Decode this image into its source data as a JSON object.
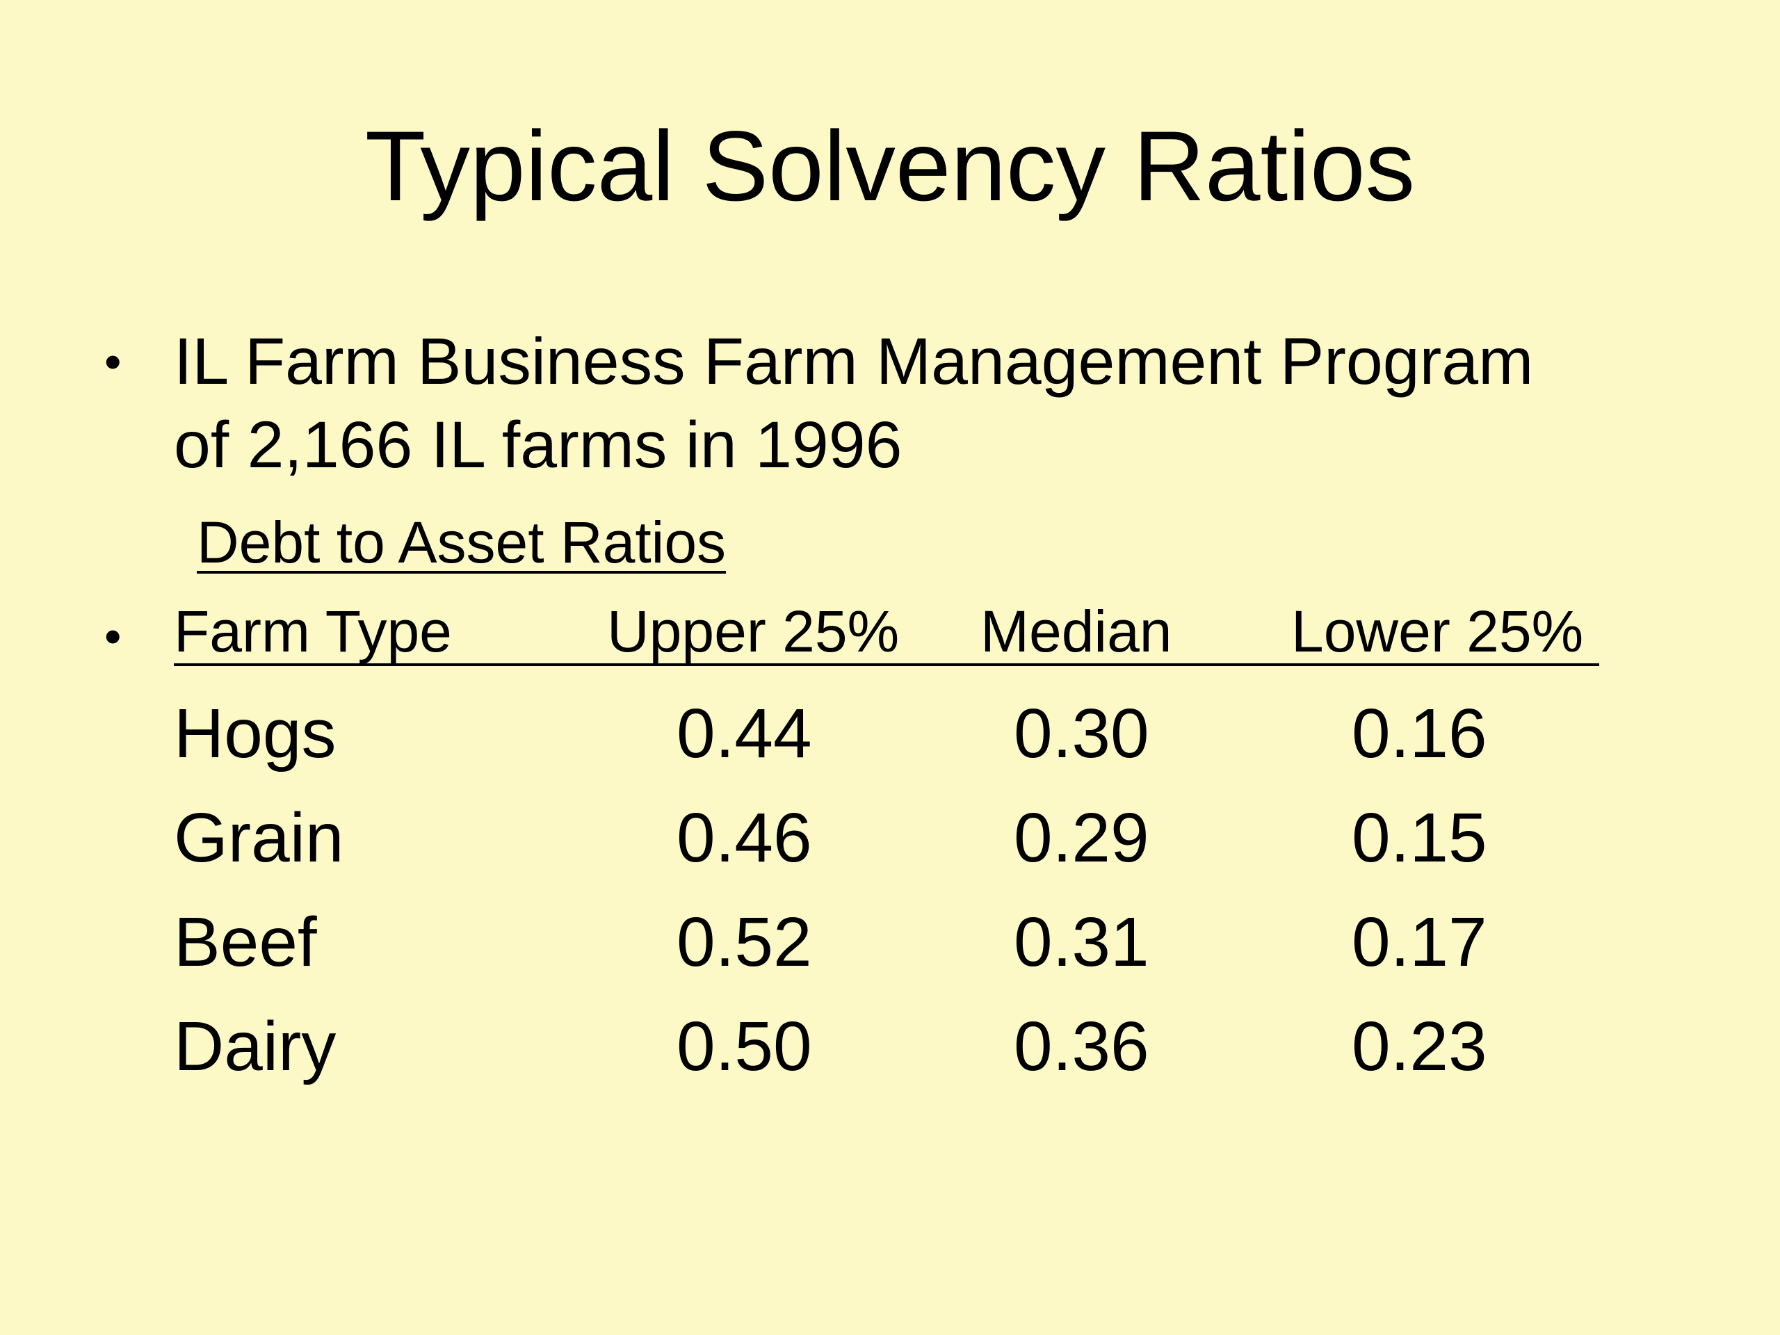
{
  "slide": {
    "title": "Typical Solvency Ratios",
    "bullet_char": "•",
    "intro_line_1": "IL Farm Business Farm Management Program",
    "intro_line_2": "of 2,166 IL farms in 1996",
    "subheading": "Debt to Asset Ratios"
  },
  "table": {
    "headers": {
      "farm_type": "Farm Type",
      "upper": "Upper 25%",
      "median": "Median",
      "lower": "Lower 25%"
    },
    "rows": [
      {
        "type": "Hogs",
        "upper": "0.44",
        "median": "0.30",
        "lower": "0.16"
      },
      {
        "type": "Grain",
        "upper": "0.46",
        "median": "0.29",
        "lower": "0.15"
      },
      {
        "type": "Beef",
        "upper": "0.52",
        "median": "0.31",
        "lower": "0.17"
      },
      {
        "type": "Dairy",
        "upper": "0.50",
        "median": "0.36",
        "lower": "0.23"
      }
    ]
  },
  "colors": {
    "background": "#fdf9c7",
    "text": "#000000"
  }
}
